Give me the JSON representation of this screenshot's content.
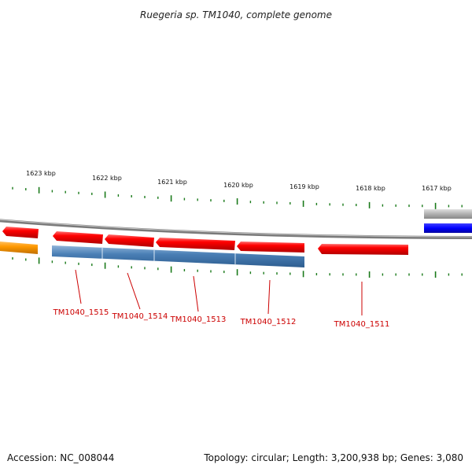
{
  "title": "Ruegeria sp. TM1040, complete genome",
  "scale_labels": [
    "1623 kbp",
    "1622 kbp",
    "1621 kbp",
    "1620 kbp",
    "1619 kbp",
    "1618 kbp",
    "1617 kbp"
  ],
  "gene_labels": [
    "TM1040_1515",
    "TM1040_1514",
    "TM1040_1513",
    "TM1040_1512",
    "TM1040_1511"
  ],
  "colors": {
    "forward_gene": "#ff0000",
    "reverse_gene": "#4a7fb5",
    "orange_feature": "#ff9900",
    "blue_feature": "#0000ff",
    "grey_feature": "#b0b0b0",
    "ticks": "#1a7a1a",
    "backbone": "#808080",
    "label_color": "#cc0000"
  },
  "footer": {
    "accession": "Accession: NC_008044",
    "summary": "Topology: circular; Length: 3,200,938 bp; Genes: 3,080"
  }
}
